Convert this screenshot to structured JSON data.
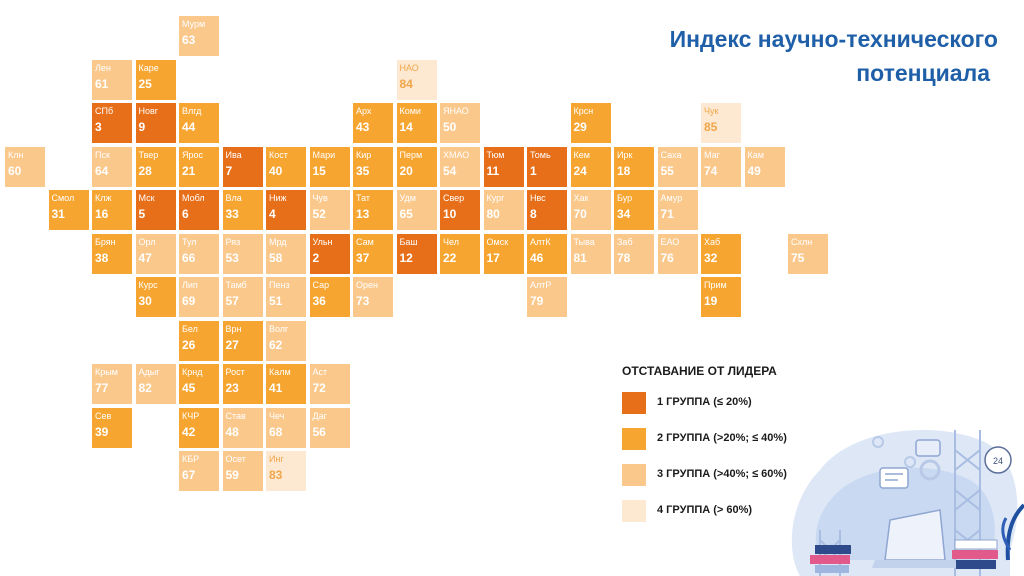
{
  "title": {
    "line1": "Индекс научно-технического",
    "line2": "потенциала"
  },
  "legend": {
    "title": "ОТСТАВАНИЕ ОТ ЛИДЕРА",
    "items": [
      {
        "label": "1 ГРУППА (≤ 20%)",
        "color": "#e76f1a"
      },
      {
        "label": "2 ГРУППА (>20%; ≤ 40%)",
        "color": "#f7a531"
      },
      {
        "label": "3 ГРУППА (>40%; ≤ 60%)",
        "color": "#fbc88c"
      },
      {
        "label": "4 ГРУППА (> 60%)",
        "color": "#fde9d1"
      }
    ]
  },
  "regions": [
    {
      "a": "Мурм",
      "v": 63,
      "g": 3,
      "r": 0,
      "c": 4
    },
    {
      "a": "Лен",
      "v": 61,
      "g": 3,
      "r": 1,
      "c": 2
    },
    {
      "a": "Каре",
      "v": 25,
      "g": 2,
      "r": 1,
      "c": 3
    },
    {
      "a": "НАО",
      "v": 84,
      "g": 4,
      "r": 1,
      "c": 9
    },
    {
      "a": "СПб",
      "v": 3,
      "g": 1,
      "r": 2,
      "c": 2
    },
    {
      "a": "Новг",
      "v": 9,
      "g": 1,
      "r": 2,
      "c": 3
    },
    {
      "a": "Влгд",
      "v": 44,
      "g": 2,
      "r": 2,
      "c": 4
    },
    {
      "a": "Арх",
      "v": 43,
      "g": 2,
      "r": 2,
      "c": 8
    },
    {
      "a": "Коми",
      "v": 14,
      "g": 2,
      "r": 2,
      "c": 9
    },
    {
      "a": "ЯНАО",
      "v": 50,
      "g": 3,
      "r": 2,
      "c": 10
    },
    {
      "a": "Крсн",
      "v": 29,
      "g": 2,
      "r": 2,
      "c": 13
    },
    {
      "a": "Чук",
      "v": 85,
      "g": 4,
      "r": 2,
      "c": 16
    },
    {
      "a": "Клн",
      "v": 60,
      "g": 3,
      "r": 3,
      "c": 0
    },
    {
      "a": "Пск",
      "v": 64,
      "g": 3,
      "r": 3,
      "c": 2
    },
    {
      "a": "Твер",
      "v": 28,
      "g": 2,
      "r": 3,
      "c": 3
    },
    {
      "a": "Ярос",
      "v": 21,
      "g": 2,
      "r": 3,
      "c": 4
    },
    {
      "a": "Ива",
      "v": 7,
      "g": 1,
      "r": 3,
      "c": 5
    },
    {
      "a": "Кост",
      "v": 40,
      "g": 2,
      "r": 3,
      "c": 6
    },
    {
      "a": "Мари",
      "v": 15,
      "g": 2,
      "r": 3,
      "c": 7
    },
    {
      "a": "Кир",
      "v": 35,
      "g": 2,
      "r": 3,
      "c": 8
    },
    {
      "a": "Перм",
      "v": 20,
      "g": 2,
      "r": 3,
      "c": 9
    },
    {
      "a": "ХМАО",
      "v": 54,
      "g": 3,
      "r": 3,
      "c": 10
    },
    {
      "a": "Тюм",
      "v": 11,
      "g": 1,
      "r": 3,
      "c": 11
    },
    {
      "a": "Томь",
      "v": 1,
      "g": 1,
      "r": 3,
      "c": 12
    },
    {
      "a": "Кем",
      "v": 24,
      "g": 2,
      "r": 3,
      "c": 13
    },
    {
      "a": "Ирк",
      "v": 18,
      "g": 2,
      "r": 3,
      "c": 14
    },
    {
      "a": "Саха",
      "v": 55,
      "g": 3,
      "r": 3,
      "c": 15
    },
    {
      "a": "Маг",
      "v": 74,
      "g": 3,
      "r": 3,
      "c": 16
    },
    {
      "a": "Кам",
      "v": 49,
      "g": 3,
      "r": 3,
      "c": 17
    },
    {
      "a": "Смол",
      "v": 31,
      "g": 2,
      "r": 4,
      "c": 1
    },
    {
      "a": "Клж",
      "v": 16,
      "g": 2,
      "r": 4,
      "c": 2
    },
    {
      "a": "Мск",
      "v": 5,
      "g": 1,
      "r": 4,
      "c": 3
    },
    {
      "a": "Мобл",
      "v": 6,
      "g": 1,
      "r": 4,
      "c": 4
    },
    {
      "a": "Вла",
      "v": 33,
      "g": 2,
      "r": 4,
      "c": 5
    },
    {
      "a": "Ниж",
      "v": 4,
      "g": 1,
      "r": 4,
      "c": 6
    },
    {
      "a": "Чув",
      "v": 52,
      "g": 3,
      "r": 4,
      "c": 7
    },
    {
      "a": "Тат",
      "v": 13,
      "g": 2,
      "r": 4,
      "c": 8
    },
    {
      "a": "Удм",
      "v": 65,
      "g": 3,
      "r": 4,
      "c": 9
    },
    {
      "a": "Свер",
      "v": 10,
      "g": 1,
      "r": 4,
      "c": 10
    },
    {
      "a": "Кург",
      "v": 80,
      "g": 3,
      "r": 4,
      "c": 11
    },
    {
      "a": "Нвс",
      "v": 8,
      "g": 1,
      "r": 4,
      "c": 12
    },
    {
      "a": "Хак",
      "v": 70,
      "g": 3,
      "r": 4,
      "c": 13
    },
    {
      "a": "Бур",
      "v": 34,
      "g": 2,
      "r": 4,
      "c": 14
    },
    {
      "a": "Амур",
      "v": 71,
      "g": 3,
      "r": 4,
      "c": 15
    },
    {
      "a": "Брян",
      "v": 38,
      "g": 2,
      "r": 5,
      "c": 2
    },
    {
      "a": "Орл",
      "v": 47,
      "g": 3,
      "r": 5,
      "c": 3
    },
    {
      "a": "Тул",
      "v": 66,
      "g": 3,
      "r": 5,
      "c": 4
    },
    {
      "a": "Ряз",
      "v": 53,
      "g": 3,
      "r": 5,
      "c": 5
    },
    {
      "a": "Мрд",
      "v": 58,
      "g": 3,
      "r": 5,
      "c": 6
    },
    {
      "a": "Ульн",
      "v": 2,
      "g": 1,
      "r": 5,
      "c": 7
    },
    {
      "a": "Сам",
      "v": 37,
      "g": 2,
      "r": 5,
      "c": 8
    },
    {
      "a": "Баш",
      "v": 12,
      "g": 1,
      "r": 5,
      "c": 9
    },
    {
      "a": "Чел",
      "v": 22,
      "g": 2,
      "r": 5,
      "c": 10
    },
    {
      "a": "Омск",
      "v": 17,
      "g": 2,
      "r": 5,
      "c": 11
    },
    {
      "a": "АлтК",
      "v": 46,
      "g": 2,
      "r": 5,
      "c": 12
    },
    {
      "a": "Тыва",
      "v": 81,
      "g": 3,
      "r": 5,
      "c": 13
    },
    {
      "a": "Заб",
      "v": 78,
      "g": 3,
      "r": 5,
      "c": 14
    },
    {
      "a": "ЕАО",
      "v": 76,
      "g": 3,
      "r": 5,
      "c": 15
    },
    {
      "a": "Хаб",
      "v": 32,
      "g": 2,
      "r": 5,
      "c": 16
    },
    {
      "a": "Схлн",
      "v": 75,
      "g": 3,
      "r": 5,
      "c": 18
    },
    {
      "a": "Курс",
      "v": 30,
      "g": 2,
      "r": 6,
      "c": 3
    },
    {
      "a": "Лип",
      "v": 69,
      "g": 3,
      "r": 6,
      "c": 4
    },
    {
      "a": "Тамб",
      "v": 57,
      "g": 3,
      "r": 6,
      "c": 5
    },
    {
      "a": "Пенз",
      "v": 51,
      "g": 3,
      "r": 6,
      "c": 6
    },
    {
      "a": "Сар",
      "v": 36,
      "g": 2,
      "r": 6,
      "c": 7
    },
    {
      "a": "Орен",
      "v": 73,
      "g": 3,
      "r": 6,
      "c": 8
    },
    {
      "a": "АлтР",
      "v": 79,
      "g": 3,
      "r": 6,
      "c": 12
    },
    {
      "a": "Прим",
      "v": 19,
      "g": 2,
      "r": 6,
      "c": 16
    },
    {
      "a": "Бел",
      "v": 26,
      "g": 2,
      "r": 7,
      "c": 4
    },
    {
      "a": "Врн",
      "v": 27,
      "g": 2,
      "r": 7,
      "c": 5
    },
    {
      "a": "Волг",
      "v": 62,
      "g": 3,
      "r": 7,
      "c": 6
    },
    {
      "a": "Крым",
      "v": 77,
      "g": 3,
      "r": 8,
      "c": 2
    },
    {
      "a": "Адыг",
      "v": 82,
      "g": 3,
      "r": 8,
      "c": 3
    },
    {
      "a": "Крнд",
      "v": 45,
      "g": 2,
      "r": 8,
      "c": 4
    },
    {
      "a": "Рост",
      "v": 23,
      "g": 2,
      "r": 8,
      "c": 5
    },
    {
      "a": "Калм",
      "v": 41,
      "g": 2,
      "r": 8,
      "c": 6
    },
    {
      "a": "Аст",
      "v": 72,
      "g": 3,
      "r": 8,
      "c": 7
    },
    {
      "a": "Сев",
      "v": 39,
      "g": 2,
      "r": 9,
      "c": 2
    },
    {
      "a": "КЧР",
      "v": 42,
      "g": 2,
      "r": 9,
      "c": 4
    },
    {
      "a": "Став",
      "v": 48,
      "g": 3,
      "r": 9,
      "c": 5
    },
    {
      "a": "Чеч",
      "v": 68,
      "g": 3,
      "r": 9,
      "c": 6
    },
    {
      "a": "Даг",
      "v": 56,
      "g": 3,
      "r": 9,
      "c": 7
    },
    {
      "a": "КБР",
      "v": 67,
      "g": 3,
      "r": 10,
      "c": 4
    },
    {
      "a": "Осет",
      "v": 59,
      "g": 3,
      "r": 10,
      "c": 5
    },
    {
      "a": "Инг",
      "v": 83,
      "g": 4,
      "r": 10,
      "c": 6
    }
  ]
}
